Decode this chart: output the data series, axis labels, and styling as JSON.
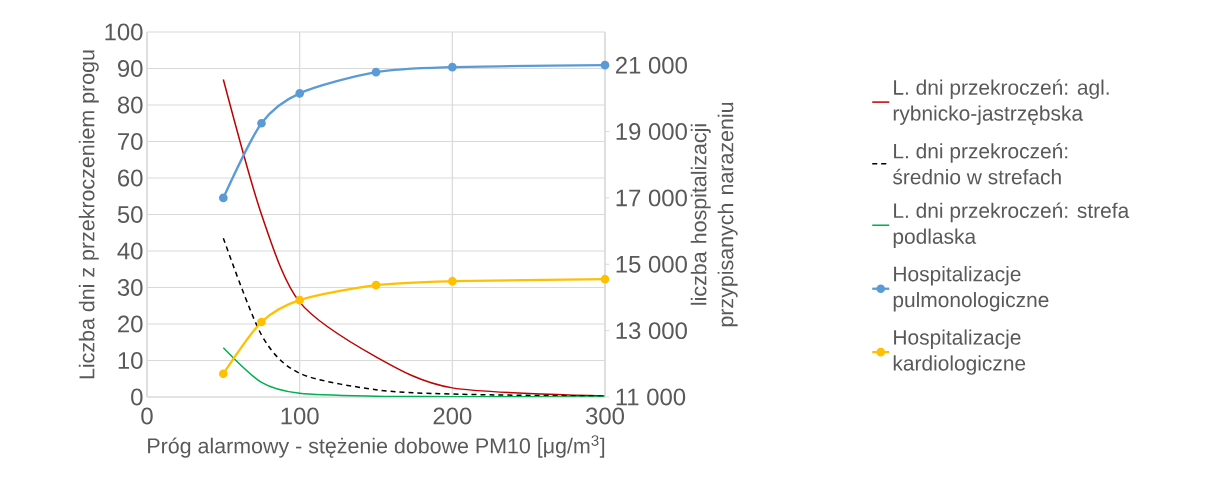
{
  "chart_data": {
    "type": "line",
    "xlabel": "Próg alarmowy - stężenie dobowe PM10 [μg/m$^{3}$]",
    "ylabel": "Liczba dni z przekroczeniem progu",
    "y2label": "liczba hospitalizacji przypisanych narazeniu",
    "x": [
      50,
      75,
      100,
      150,
      200,
      300
    ],
    "xlim": [
      0,
      300
    ],
    "xticks": [
      0,
      100,
      200,
      300
    ],
    "ylim": [
      0,
      100
    ],
    "yticks": [
      0,
      10,
      20,
      30,
      40,
      50,
      60,
      70,
      80,
      90,
      100
    ],
    "y2lim": [
      11000,
      22000
    ],
    "y2ticks": [
      {
        "value": 11000,
        "label": "11 000"
      },
      {
        "value": 13000,
        "label": "13 000"
      },
      {
        "value": 15000,
        "label": "15 000"
      },
      {
        "value": 17000,
        "label": "17 000"
      },
      {
        "value": 19000,
        "label": "19 000"
      },
      {
        "value": 21000,
        "label": "21 000"
      }
    ],
    "grid": true,
    "legend": "right",
    "series": [
      {
        "name": "L. dni przekroczeń: agl. rybnicko-jastrzębska",
        "color": "#c00000",
        "marker": "none",
        "line_style": "solid",
        "values": [
          87,
          50,
          26,
          11,
          2.5,
          0.3
        ]
      },
      {
        "name": "L. dni przekroczeń: średnio w strefach",
        "color": "#000000",
        "marker": "none",
        "line_style": "dashed",
        "values": [
          43.5,
          17,
          6.5,
          2,
          0.8,
          0.2
        ]
      },
      {
        "name": "L. dni przekroczeń: strefa podlaska",
        "color": "#00b050",
        "marker": "none",
        "line_style": "solid",
        "values": [
          13.5,
          4,
          1,
          0.2,
          0.1,
          0
        ]
      },
      {
        "name": "Hospitalizacje pulmonologiczne",
        "color": "#5b9bd5",
        "marker": "circle",
        "line_style": "solid",
        "axis": "y2",
        "values": [
          17000,
          19250,
          20150,
          20790,
          20940,
          21000
        ]
      },
      {
        "name": "Hospitalizacje kardiologiczne",
        "color": "#ffc000",
        "marker": "circle",
        "line_style": "solid",
        "axis": "y2",
        "values": [
          11700,
          13260,
          13920,
          14370,
          14490,
          14550
        ]
      }
    ]
  }
}
